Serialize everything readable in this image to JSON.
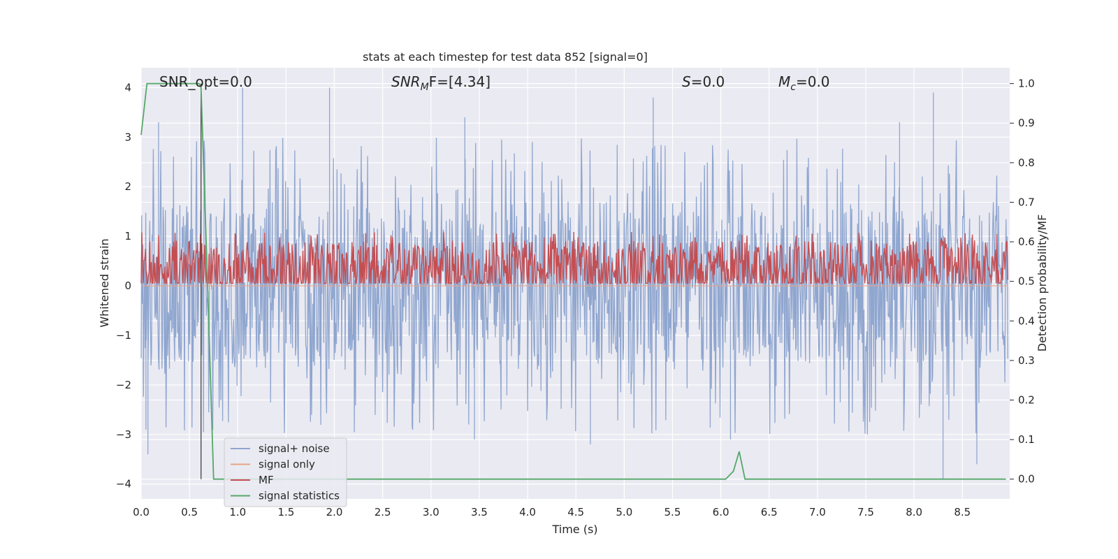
{
  "chart_data": {
    "type": "line",
    "title": "stats at each timestep for test data 852 [signal=0]",
    "xlabel": "Time (s)",
    "ylabel_left": "Whitened strain",
    "ylabel_right": "Detection probability/MF",
    "xlim": [
      0.0,
      8.99
    ],
    "ylim_left": [
      -4.3,
      4.4
    ],
    "ylim_right": [
      -0.05,
      1.04
    ],
    "x_ticks": [
      0.0,
      0.5,
      1.0,
      1.5,
      2.0,
      2.5,
      3.0,
      3.5,
      4.0,
      4.5,
      5.0,
      5.5,
      6.0,
      6.5,
      7.0,
      7.5,
      8.0,
      8.5
    ],
    "x_tick_labels": [
      "0.0",
      "0.5",
      "1.0",
      "1.5",
      "2.0",
      "2.5",
      "3.0",
      "3.5",
      "4.0",
      "4.5",
      "5.0",
      "5.5",
      "6.0",
      "6.5",
      "7.0",
      "7.5",
      "8.0",
      "8.5"
    ],
    "y_ticks_left": [
      -4,
      -3,
      -2,
      -1,
      0,
      1,
      2,
      3,
      4
    ],
    "y_tick_labels_left": [
      "−4",
      "−3",
      "−2",
      "−1",
      "0",
      "1",
      "2",
      "3",
      "4"
    ],
    "y_ticks_right": [
      0.0,
      0.1,
      0.2,
      0.3,
      0.4,
      0.5,
      0.6,
      0.7,
      0.8,
      0.9,
      1.0
    ],
    "y_tick_labels_right": [
      "0.0",
      "0.1",
      "0.2",
      "0.3",
      "0.4",
      "0.5",
      "0.6",
      "0.7",
      "0.8",
      "0.9",
      "1.0"
    ],
    "grid": true,
    "legend_position": "lower-left",
    "annotations": {
      "snr_opt": "SNR_opt=0.0",
      "snr_mf_main": "SNR",
      "snr_mf_sub": "M",
      "snr_mf_rest": "F=[4.34]",
      "s_main": "S",
      "s_rest": "=0.0",
      "mc_main": "M",
      "mc_sub": "c",
      "mc_rest": "=0.0"
    },
    "vertical_marker_x": 0.62,
    "series": [
      {
        "name": "signal+ noise",
        "color": "#8fa6cf",
        "axis": "left",
        "style": "noise",
        "envelope": {
          "p90_upper": 1.7,
          "p90_lower": -1.6,
          "max_upper": 4.0,
          "max_lower": -3.9
        },
        "peaks": [
          {
            "x": 1.95,
            "y": 4.0
          },
          {
            "x": 1.05,
            "y": 4.0
          },
          {
            "x": 5.3,
            "y": 3.8
          },
          {
            "x": 8.2,
            "y": 3.9
          },
          {
            "x": 0.18,
            "y": 3.3
          },
          {
            "x": 3.35,
            "y": 3.4
          },
          {
            "x": 7.85,
            "y": 3.3
          },
          {
            "x": 0.05,
            "y": -2.9
          },
          {
            "x": 0.07,
            "y": -3.4
          },
          {
            "x": 8.3,
            "y": -3.9
          },
          {
            "x": 8.65,
            "y": -3.6
          },
          {
            "x": 4.65,
            "y": -3.2
          },
          {
            "x": 3.45,
            "y": -3.1
          },
          {
            "x": 6.1,
            "y": -3.1
          }
        ]
      },
      {
        "name": "signal only",
        "color": "#e8a487",
        "axis": "left",
        "style": "flat",
        "value": 0.0
      },
      {
        "name": "MF",
        "color": "#c44e52",
        "axis": "right",
        "style": "noise",
        "envelope": {
          "center": 0.53,
          "p90_upper": 0.61,
          "p90_lower": 0.505,
          "max_upper": 0.625,
          "max_lower": 0.495
        }
      },
      {
        "name": "signal statistics",
        "color": "#55a868",
        "axis": "right",
        "style": "line",
        "x": [
          0.0,
          0.06,
          0.6,
          0.62,
          0.68,
          0.75,
          6.05,
          6.13,
          6.19,
          6.25,
          8.95
        ],
        "y": [
          0.87,
          1.0,
          1.0,
          0.99,
          0.55,
          0.0,
          0.0,
          0.02,
          0.07,
          0.0,
          0.0
        ]
      }
    ]
  }
}
